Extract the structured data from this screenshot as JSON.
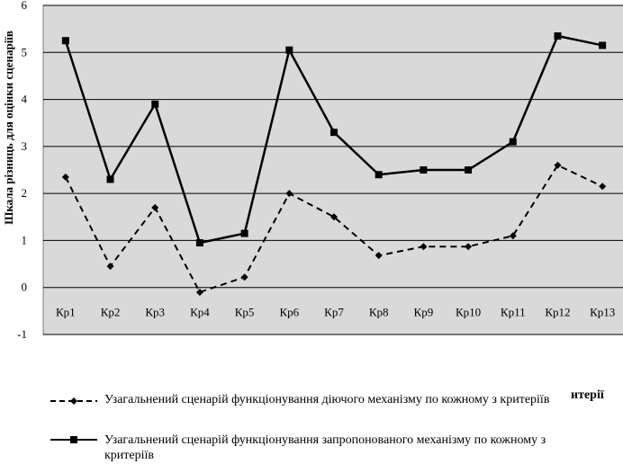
{
  "chart_data": {
    "type": "line",
    "categories": [
      "Кр1",
      "Кр2",
      "Кр3",
      "Кр4",
      "Кр5",
      "Кр6",
      "Кр7",
      "Кр8",
      "Кр9",
      "Кр10",
      "Кр11",
      "Кр12",
      "Кр13"
    ],
    "series": [
      {
        "name": "Узагальнений сценарій функціонування діючого механізму по кожному з критеріїв",
        "style": "dashed",
        "marker": "diamond",
        "values": [
          2.35,
          0.45,
          1.7,
          -0.1,
          0.22,
          2.0,
          1.5,
          0.68,
          0.87,
          0.87,
          1.1,
          2.6,
          2.15
        ]
      },
      {
        "name": "Узагальнений сценарій функціонування запропонованого механізму по кожному з критеріїв",
        "style": "solid",
        "marker": "square",
        "values": [
          5.25,
          2.3,
          3.9,
          0.95,
          1.15,
          5.05,
          3.3,
          2.4,
          2.5,
          2.5,
          3.1,
          5.35,
          5.15
        ]
      }
    ],
    "ylabel": "Шкала різниць для оцінки сценаріїв",
    "xlabel_fragment": "итерії",
    "ylim": [
      -1,
      6
    ],
    "yticks": [
      "-1",
      "0",
      "1",
      "2",
      "3",
      "4",
      "5",
      "6"
    ],
    "grid": true,
    "plot_background": "#d9d9d9",
    "line_color": "#000000",
    "legend_position": "bottom"
  }
}
